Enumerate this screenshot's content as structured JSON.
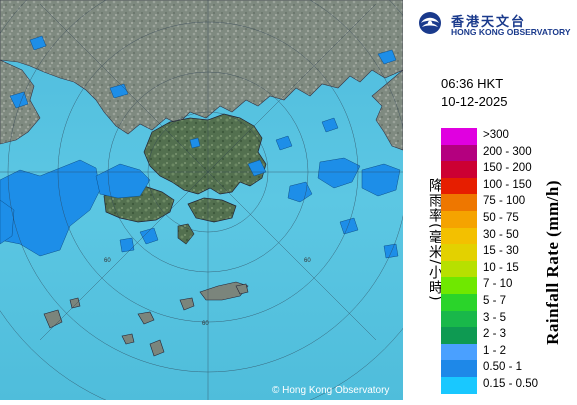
{
  "header": {
    "org_name_cn": "香港天文台",
    "org_name_en": "HONG KONG OBSERVATORY"
  },
  "timestamp": {
    "time": "06:36 HKT",
    "date": "10-12-2025"
  },
  "legend": {
    "title_cn": "降雨率(毫米/小時)",
    "title_en": "Rainfall Rate (mm/h)",
    "levels": [
      {
        "label": ">300",
        "color": "#e000e0"
      },
      {
        "label": "200 - 300",
        "color": "#b4007f"
      },
      {
        "label": "150 - 200",
        "color": "#cc0033"
      },
      {
        "label": "100 - 150",
        "color": "#e61e00"
      },
      {
        "label": "75 - 100",
        "color": "#ee7700"
      },
      {
        "label": "50 - 75",
        "color": "#f5a300"
      },
      {
        "label": "30 - 50",
        "color": "#f3c000"
      },
      {
        "label": "15 - 30",
        "color": "#e3d100"
      },
      {
        "label": "10 - 15",
        "color": "#b7e000"
      },
      {
        "label": "7 - 10",
        "color": "#6fe800"
      },
      {
        "label": "5 - 7",
        "color": "#2ad42a"
      },
      {
        "label": "3 - 5",
        "color": "#19b84a"
      },
      {
        "label": "2 - 3",
        "color": "#0e9a52"
      },
      {
        "label": "1 - 2",
        "color": "#4aa0ff"
      },
      {
        "label": "0.50 - 1",
        "color": "#1e88e8"
      },
      {
        "label": "0.15 - 0.50",
        "color": "#19c8ff"
      }
    ]
  },
  "map": {
    "ring_label": "60",
    "copyright": "© Hong Kong Observatory",
    "sea_color": "#5fc8e4",
    "land_color": "#7e8a7e",
    "rain_color": "#1e8fe6"
  }
}
